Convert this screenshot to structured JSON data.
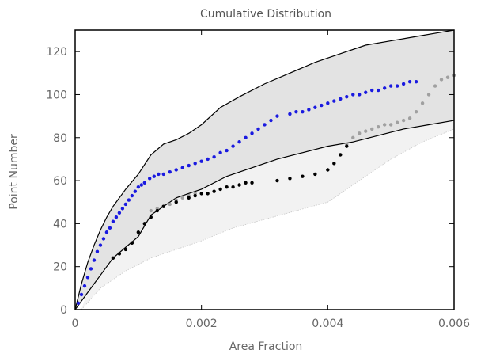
{
  "chart_data": {
    "type": "scatter",
    "title": "Cumulative Distribution",
    "xlabel": "Area Fraction",
    "ylabel": "Point Number",
    "xlim": [
      0,
      0.006
    ],
    "ylim": [
      0,
      130
    ],
    "x_ticks": [
      0,
      0.002,
      0.004,
      0.006
    ],
    "x_tick_labels": [
      "0",
      "0.002",
      "0.004",
      "0.006"
    ],
    "y_ticks": [
      0,
      20,
      40,
      60,
      80,
      100,
      120
    ],
    "y_tick_labels": [
      "0",
      "20",
      "40",
      "60",
      "80",
      "100",
      "120"
    ],
    "grid": false,
    "colors": {
      "envelope_fill": "#e3e3e3",
      "envelope_line": "#000000",
      "blue_points": "#1a1ae0",
      "gray_points": "#a0a0a0",
      "black_points": "#000000",
      "faint_band": "#f2f2f2",
      "faint_line": "#c8c8c8"
    },
    "series": [
      {
        "role": "envelope",
        "upper": {
          "x": [
            0,
            0.0001,
            0.0002,
            0.0003,
            0.0004,
            0.0005,
            0.0006,
            0.0008,
            0.001,
            0.0012,
            0.0014,
            0.0016,
            0.0018,
            0.002,
            0.0023,
            0.0026,
            0.003,
            0.0034,
            0.0038,
            0.0042,
            0.0046,
            0.005,
            0.0054,
            0.0058,
            0.006
          ],
          "y": [
            0,
            12,
            22,
            30,
            37,
            43,
            48,
            56,
            63,
            72,
            77,
            79,
            82,
            86,
            94,
            99,
            105,
            110,
            115,
            119,
            123,
            125,
            127,
            129,
            130
          ]
        },
        "lower": {
          "x": [
            0,
            0.0001,
            0.0002,
            0.0003,
            0.0004,
            0.0005,
            0.0006,
            0.0008,
            0.001,
            0.0012,
            0.0014,
            0.0016,
            0.0018,
            0.002,
            0.0024,
            0.0028,
            0.0032,
            0.0036,
            0.004,
            0.0044,
            0.0048,
            0.0052,
            0.0056,
            0.006
          ],
          "y": [
            0,
            4,
            8,
            12,
            16,
            20,
            24,
            29,
            34,
            44,
            48,
            52,
            54,
            56,
            62,
            66,
            70,
            73,
            76,
            78,
            81,
            84,
            86,
            88
          ]
        }
      },
      {
        "role": "faint-envelope",
        "upper": {
          "x": [
            0.0004,
            0.0008,
            0.0012,
            0.0016,
            0.002,
            0.0025,
            0.003,
            0.0035,
            0.004,
            0.0045,
            0.005,
            0.0055,
            0.006
          ],
          "y": [
            28,
            40,
            50,
            60,
            68,
            74,
            78,
            80,
            83,
            92,
            100,
            108,
            114
          ]
        },
        "lower": {
          "x": [
            0.0001,
            0.0004,
            0.0008,
            0.0012,
            0.0016,
            0.002,
            0.0025,
            0.003,
            0.0035,
            0.004,
            0.0045,
            0.005,
            0.0055,
            0.006
          ],
          "y": [
            0,
            10,
            18,
            24,
            28,
            32,
            38,
            42,
            46,
            50,
            60,
            70,
            78,
            84
          ]
        }
      },
      {
        "role": "points-blue",
        "x": [
          5e-05,
          0.0001,
          0.00015,
          0.0002,
          0.00025,
          0.0003,
          0.00035,
          0.0004,
          0.00045,
          0.0005,
          0.00055,
          0.0006,
          0.00065,
          0.0007,
          0.00075,
          0.0008,
          0.00085,
          0.0009,
          0.00095,
          0.001,
          0.00105,
          0.0011,
          0.00118,
          0.00125,
          0.00132,
          0.0014,
          0.0015,
          0.0016,
          0.0017,
          0.0018,
          0.0019,
          0.002,
          0.0021,
          0.0022,
          0.0023,
          0.0024,
          0.0025,
          0.0026,
          0.0027,
          0.0028,
          0.0029,
          0.003,
          0.0031,
          0.0032,
          0.0034,
          0.0035,
          0.0036,
          0.0037,
          0.0038,
          0.0039,
          0.004,
          0.0041,
          0.0042,
          0.0043,
          0.0044,
          0.0045,
          0.0046,
          0.0047,
          0.0048,
          0.0049,
          0.005,
          0.0051,
          0.0052,
          0.0053,
          0.0054
        ],
        "y": [
          3,
          7,
          11,
          15,
          19,
          23,
          27,
          30,
          33,
          36,
          38,
          41,
          43,
          45,
          47,
          49,
          51,
          53,
          55,
          57,
          58,
          59,
          61,
          62,
          63,
          63,
          64,
          65,
          66,
          67,
          68,
          69,
          70,
          71,
          73,
          74,
          76,
          78,
          80,
          82,
          84,
          86,
          88,
          90,
          91,
          92,
          92,
          93,
          94,
          95,
          96,
          97,
          98,
          99,
          100,
          100,
          101,
          102,
          102,
          103,
          104,
          104,
          105,
          106,
          106
        ]
      },
      {
        "role": "points-gray",
        "x": [
          0.0012,
          0.0013,
          0.0014,
          0.0015,
          0.0016,
          0.0017,
          0.0018,
          0.0019,
          0.0043,
          0.0044,
          0.0045,
          0.0046,
          0.0047,
          0.0048,
          0.0049,
          0.005,
          0.0051,
          0.0052,
          0.0053,
          0.0054,
          0.0055,
          0.0056,
          0.0057,
          0.0058,
          0.0059,
          0.006
        ],
        "y": [
          46,
          47,
          48,
          49,
          51,
          52,
          53,
          54,
          77,
          80,
          82,
          83,
          84,
          85,
          86,
          86,
          87,
          88,
          89,
          92,
          96,
          100,
          104,
          107,
          108,
          109
        ]
      },
      {
        "role": "points-black",
        "x": [
          0.0006,
          0.0007,
          0.0008,
          0.0009,
          0.001,
          0.0011,
          0.0012,
          0.0013,
          0.0014,
          0.0016,
          0.0018,
          0.0019,
          0.002,
          0.0021,
          0.0022,
          0.0023,
          0.0024,
          0.0025,
          0.0026,
          0.0027,
          0.0028,
          0.0032,
          0.0034,
          0.0036,
          0.0038,
          0.004,
          0.0041,
          0.0042,
          0.0043
        ],
        "y": [
          24,
          26,
          28,
          31,
          36,
          40,
          43,
          46,
          48,
          50,
          52,
          53,
          54,
          54,
          55,
          56,
          57,
          57,
          58,
          59,
          59,
          60,
          61,
          62,
          63,
          65,
          68,
          72,
          76
        ]
      }
    ]
  }
}
